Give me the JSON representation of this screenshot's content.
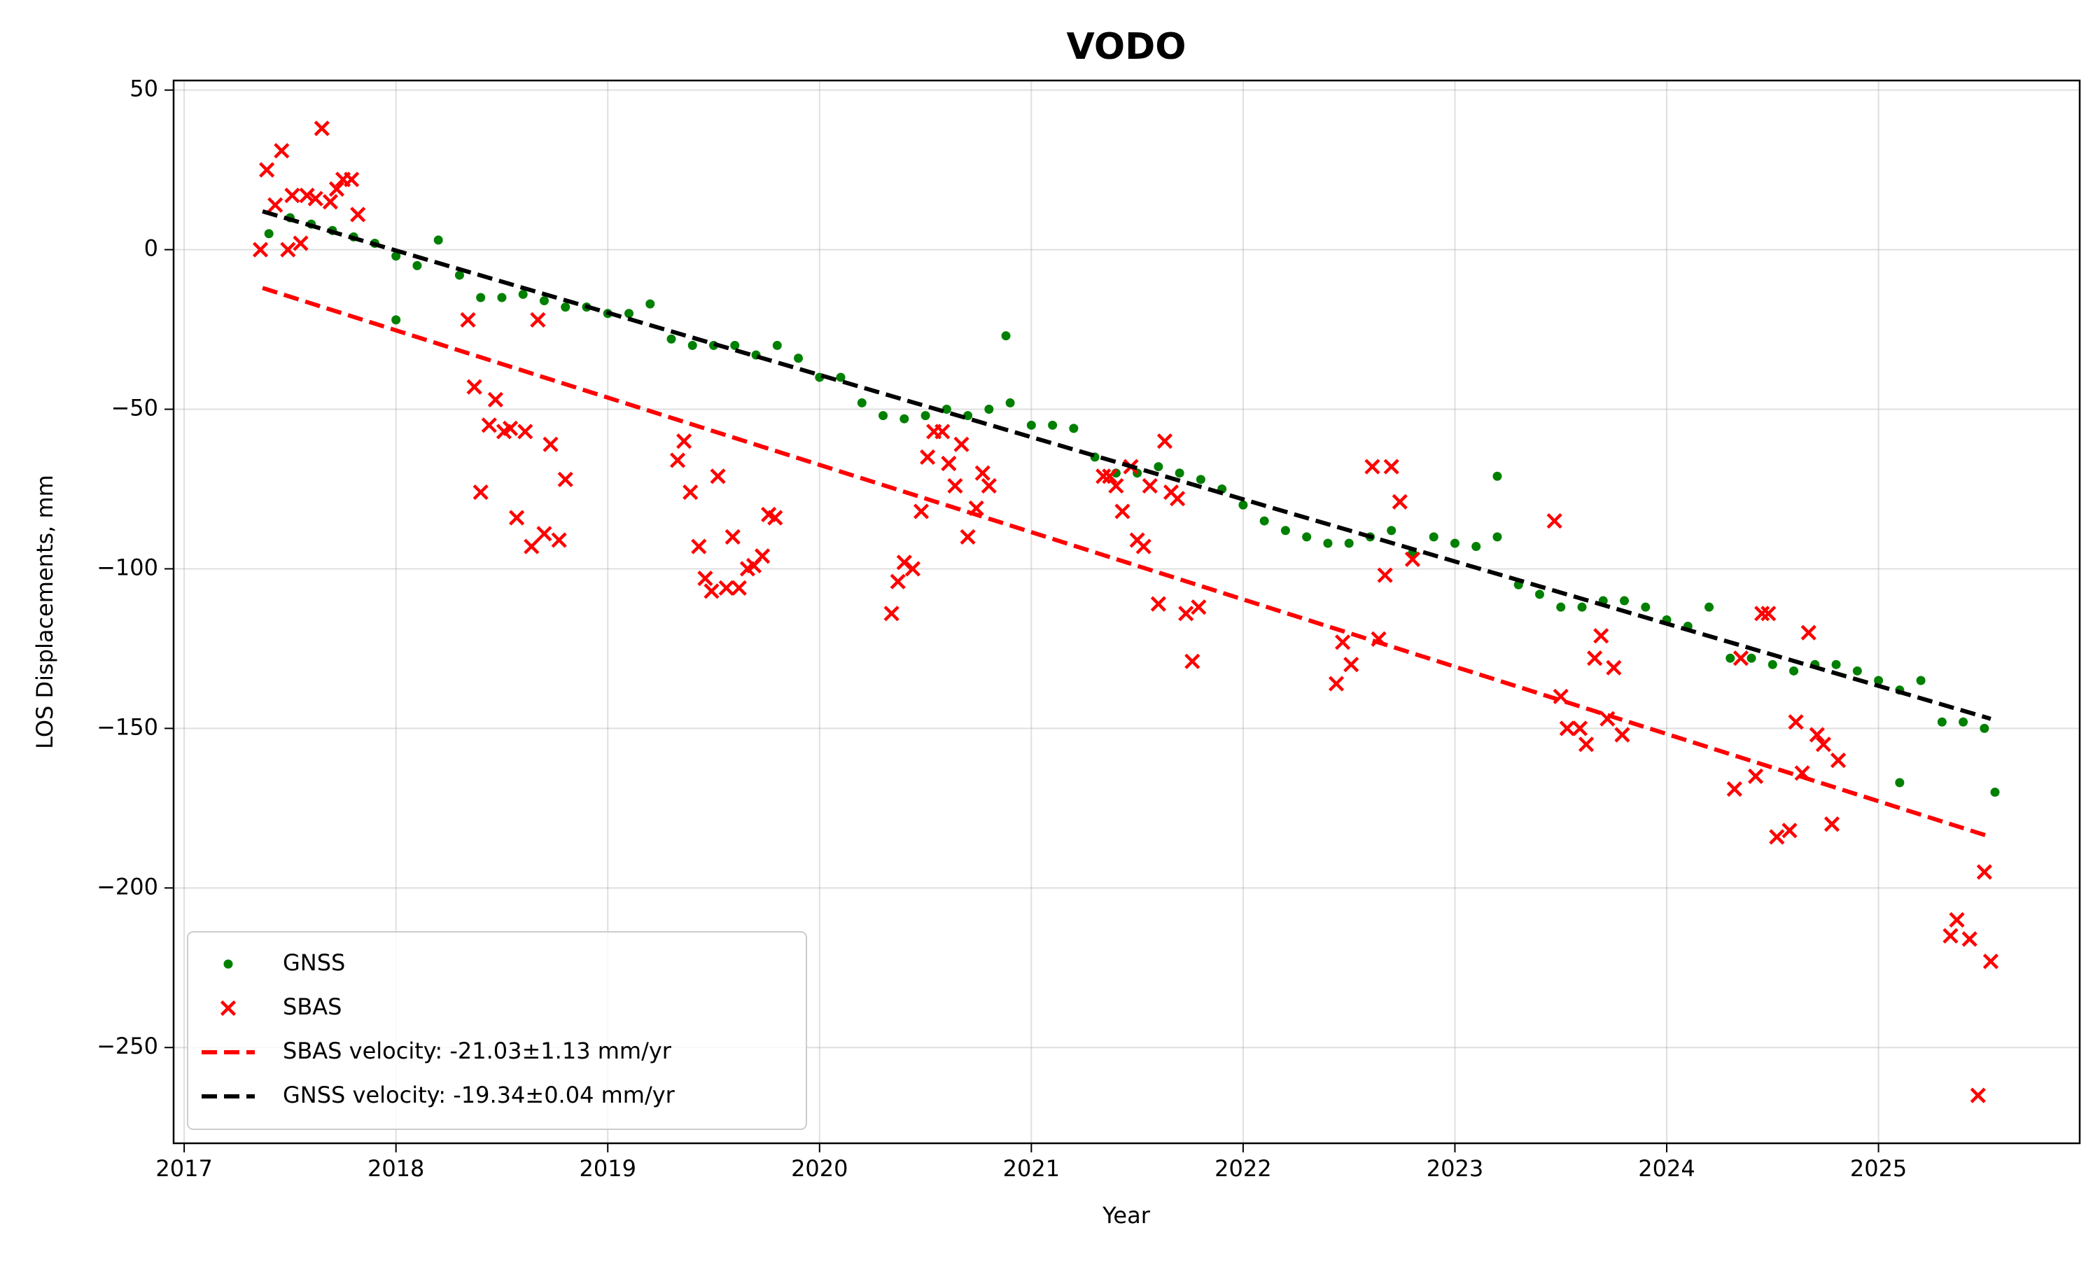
{
  "chart_data": {
    "type": "scatter",
    "title": "VODO",
    "xlabel": "Year",
    "ylabel": "LOS Displacements, mm",
    "xlim": [
      2016.95,
      2025.95
    ],
    "ylim": [
      -280,
      53
    ],
    "xticks": [
      2017,
      2018,
      2019,
      2020,
      2021,
      2022,
      2023,
      2024,
      2025
    ],
    "yticks": [
      50,
      0,
      {
        "value": -50,
        "label": "−50"
      },
      {
        "value": -100,
        "label": "−100"
      },
      {
        "value": -150,
        "label": "−150"
      },
      {
        "value": -200,
        "label": "−200"
      },
      {
        "value": -250,
        "label": "−250"
      }
    ],
    "grid": true,
    "legend": "lower left",
    "series": [
      {
        "name": "GNSS",
        "type": "scatter",
        "marker": "o",
        "color": "#008000",
        "x": [
          2017.4,
          2017.5,
          2017.6,
          2017.7,
          2017.8,
          2017.9,
          2018.0,
          2018.1,
          2018.2,
          2018.3,
          2018.4,
          2018.5,
          2018.6,
          2018.7,
          2018.8,
          2018.9,
          2019.0,
          2019.1,
          2019.2,
          2019.3,
          2019.4,
          2019.5,
          2019.6,
          2019.7,
          2019.8,
          2019.9,
          2020.0,
          2020.1,
          2020.2,
          2020.3,
          2020.4,
          2020.5,
          2020.6,
          2020.7,
          2020.8,
          2020.9,
          2021.0,
          2021.1,
          2021.2,
          2021.3,
          2021.4,
          2021.5,
          2021.6,
          2021.7,
          2021.8,
          2021.9,
          2022.0,
          2022.1,
          2022.2,
          2022.3,
          2022.4,
          2022.5,
          2022.6,
          2022.7,
          2022.8,
          2022.9,
          2023.0,
          2023.1,
          2023.2,
          2023.3,
          2023.4,
          2023.5,
          2023.6,
          2023.7,
          2023.8,
          2023.9,
          2024.0,
          2024.1,
          2024.2,
          2024.3,
          2024.4,
          2024.5,
          2024.6,
          2024.7,
          2024.8,
          2024.9,
          2025.0,
          2025.1,
          2025.2,
          2025.3,
          2025.4,
          2025.5,
          2020.88,
          2023.2,
          2025.55,
          2025.1,
          2018.0
        ],
        "values": [
          5,
          10,
          8,
          6,
          4,
          2,
          -2,
          -5,
          3,
          -8,
          -15,
          -15,
          -14,
          -16,
          -18,
          -18,
          -20,
          -20,
          -17,
          -28,
          -30,
          -30,
          -30,
          -33,
          -30,
          -34,
          -40,
          -40,
          -48,
          -52,
          -53,
          -52,
          -50,
          -52,
          -50,
          -48,
          -55,
          -55,
          -56,
          -65,
          -70,
          -70,
          -68,
          -70,
          -72,
          -75,
          -80,
          -85,
          -88,
          -90,
          -92,
          -92,
          -90,
          -88,
          -95,
          -90,
          -92,
          -93,
          -90,
          -105,
          -108,
          -112,
          -112,
          -110,
          -110,
          -112,
          -116,
          -118,
          -112,
          -128,
          -128,
          -130,
          -132,
          -130,
          -130,
          -132,
          -135,
          -138,
          -135,
          -148,
          -148,
          -150,
          -27,
          -71,
          -170,
          -167,
          -22
        ]
      },
      {
        "name": "SBAS",
        "type": "scatter",
        "marker": "x",
        "color": "#ff0000",
        "x": [
          2017.36,
          2017.39,
          2017.43,
          2017.46,
          2017.49,
          2017.51,
          2017.55,
          2017.58,
          2017.62,
          2017.65,
          2017.69,
          2017.72,
          2017.75,
          2017.79,
          2017.82,
          2018.34,
          2018.37,
          2018.4,
          2018.44,
          2018.47,
          2018.51,
          2018.54,
          2018.57,
          2018.61,
          2018.64,
          2018.67,
          2018.7,
          2018.73,
          2018.77,
          2018.8,
          2019.33,
          2019.36,
          2019.39,
          2019.43,
          2019.46,
          2019.49,
          2019.52,
          2019.56,
          2019.59,
          2019.62,
          2019.66,
          2019.69,
          2019.73,
          2019.76,
          2019.79,
          2020.34,
          2020.37,
          2020.4,
          2020.44,
          2020.48,
          2020.51,
          2020.54,
          2020.58,
          2020.61,
          2020.64,
          2020.67,
          2020.7,
          2020.74,
          2020.77,
          2020.8,
          2021.34,
          2021.37,
          2021.4,
          2021.43,
          2021.47,
          2021.5,
          2021.53,
          2021.56,
          2021.6,
          2021.63,
          2021.66,
          2021.69,
          2021.73,
          2021.76,
          2021.79,
          2022.44,
          2022.47,
          2022.51,
          2022.61,
          2022.64,
          2022.67,
          2022.7,
          2022.74,
          2022.8,
          2023.47,
          2023.5,
          2023.53,
          2023.59,
          2023.62,
          2023.66,
          2023.69,
          2023.72,
          2023.75,
          2023.79,
          2024.32,
          2024.35,
          2024.42,
          2024.45,
          2024.48,
          2024.52,
          2024.58,
          2024.61,
          2024.64,
          2024.67,
          2024.71,
          2024.74,
          2024.78,
          2024.81,
          2025.34,
          2025.37,
          2025.43,
          2025.47,
          2025.5,
          2025.53
        ],
        "values": [
          0,
          25,
          14,
          31,
          0,
          17,
          2,
          17,
          16,
          38,
          15,
          19,
          22,
          22,
          11,
          -22,
          -43,
          -76,
          -55,
          -47,
          -57,
          -56,
          -84,
          -57,
          -93,
          -22,
          -89,
          -61,
          -91,
          -72,
          -66,
          -60,
          -76,
          -93,
          -103,
          -107,
          -71,
          -106,
          -90,
          -106,
          -100,
          -99,
          -96,
          -83,
          -84,
          -114,
          -104,
          -98,
          -100,
          -82,
          -65,
          -57,
          -57,
          -67,
          -74,
          -61,
          -90,
          -81,
          -70,
          -74,
          -71,
          -71,
          -74,
          -82,
          -68,
          -91,
          -93,
          -74,
          -111,
          -60,
          -76,
          -78,
          -114,
          -129,
          -112,
          -136,
          -123,
          -130,
          -68,
          -122,
          -102,
          -68,
          -79,
          -97,
          -85,
          -140,
          -150,
          -150,
          -155,
          -128,
          -121,
          -147,
          -131,
          -152,
          -169,
          -128,
          -165,
          -114,
          -114,
          -184,
          -182,
          -148,
          -164,
          -120,
          -152,
          -155,
          -180,
          -160,
          -215,
          -210,
          -216,
          -265,
          -195,
          -223
        ]
      },
      {
        "name": "SBAS velocity: -21.03±1.13 mm/yr",
        "type": "line",
        "dash": true,
        "color": "#ff0000",
        "x": [
          2017.37,
          2025.53
        ],
        "values": [
          -12,
          -184
        ]
      },
      {
        "name": "GNSS velocity: -19.34±0.04 mm/yr",
        "type": "line",
        "dash": true,
        "color": "#000000",
        "x": [
          2017.37,
          2025.53
        ],
        "values": [
          12,
          -147
        ]
      }
    ]
  }
}
